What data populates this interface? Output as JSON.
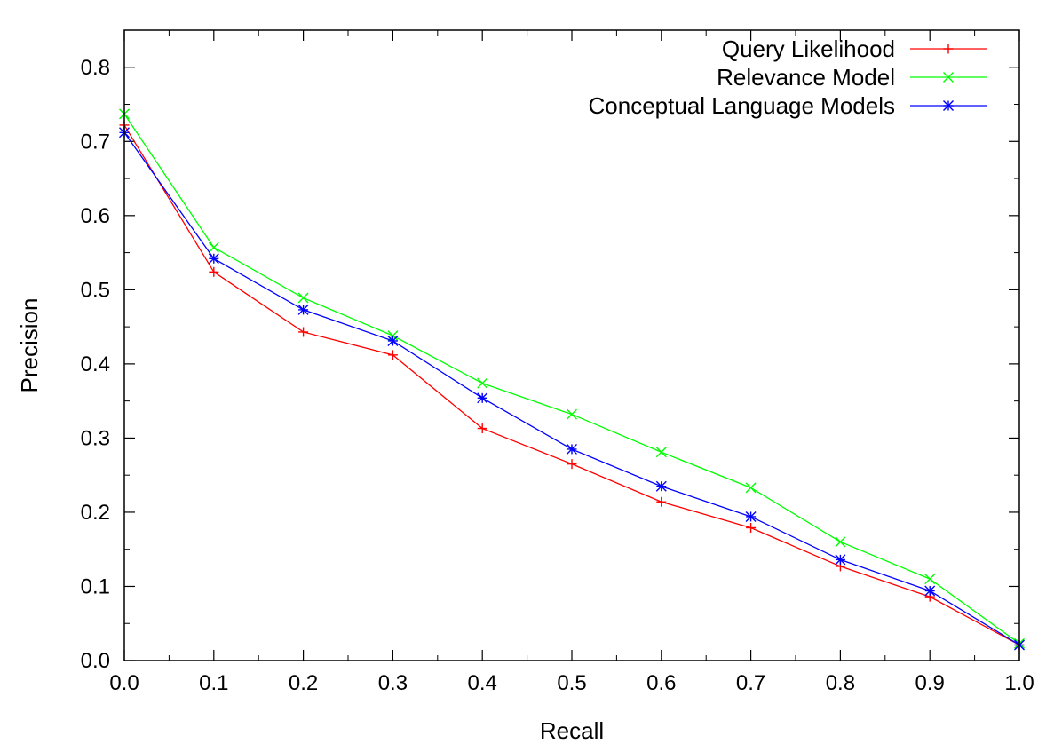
{
  "chart_data": {
    "type": "line",
    "title": "",
    "xlabel": "Recall",
    "ylabel": "Precision",
    "xlim": [
      0.0,
      1.0
    ],
    "ylim": [
      0.0,
      0.85
    ],
    "xticks": [
      "0.0",
      "0.1",
      "0.2",
      "0.3",
      "0.4",
      "0.5",
      "0.6",
      "0.7",
      "0.8",
      "0.9",
      "1.0"
    ],
    "yticks": [
      "0.0",
      "0.1",
      "0.2",
      "0.3",
      "0.4",
      "0.5",
      "0.6",
      "0.7",
      "0.8"
    ],
    "x": [
      0.0,
      0.1,
      0.2,
      0.3,
      0.4,
      0.5,
      0.6,
      0.7,
      0.8,
      0.9,
      1.0
    ],
    "grid": false,
    "legend_position": "top-right",
    "series": [
      {
        "name": "Query Likelihood",
        "color": "#ff0000",
        "marker": "plus",
        "values": [
          0.722,
          0.524,
          0.443,
          0.412,
          0.313,
          0.265,
          0.214,
          0.179,
          0.127,
          0.086,
          0.021
        ]
      },
      {
        "name": "Relevance Model",
        "color": "#00ff00",
        "marker": "cross",
        "values": [
          0.737,
          0.557,
          0.489,
          0.438,
          0.374,
          0.332,
          0.281,
          0.233,
          0.16,
          0.11,
          0.023
        ]
      },
      {
        "name": "Conceptual Language Models",
        "color": "#0000ff",
        "marker": "star",
        "values": [
          0.712,
          0.542,
          0.473,
          0.431,
          0.354,
          0.285,
          0.235,
          0.194,
          0.136,
          0.094,
          0.021
        ]
      }
    ]
  }
}
